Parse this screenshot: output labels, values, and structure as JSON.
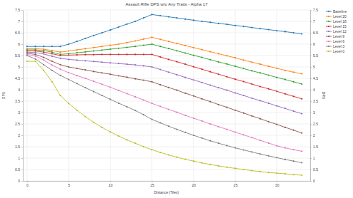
{
  "chart_data": {
    "type": "line",
    "title": "Assault Rifle DPS w/o Any Traits - Alpha 17",
    "x_label": "Distance (Tiles)",
    "y_label": "DPS",
    "y2_label": "DPS",
    "x": [
      0,
      1,
      2,
      3,
      4,
      5,
      6,
      7,
      8,
      9,
      10,
      11,
      12,
      13,
      14,
      15,
      16,
      17,
      18,
      19,
      20,
      21,
      22,
      23,
      24,
      25,
      26,
      27,
      28,
      29,
      30,
      31,
      32,
      33
    ],
    "xlim": [
      -0.5,
      34
    ],
    "xticks": [
      0,
      5,
      10,
      15,
      20,
      25,
      30
    ],
    "ylim": [
      0,
      7.5
    ],
    "yticks": [
      0,
      0.5,
      1,
      1.5,
      2,
      2.5,
      3,
      3.5,
      4,
      4.5,
      5,
      5.5,
      6,
      6.5,
      7,
      7.5
    ],
    "y2lim": [
      0,
      7.5
    ],
    "y2ticks": [
      0,
      0.5,
      1,
      1.5,
      2,
      2.5,
      3,
      3.5,
      4,
      4.5,
      5,
      5.5,
      6,
      6.5,
      7,
      7.5
    ],
    "grid": true,
    "legend": "top-right",
    "marker": "circle",
    "series": [
      {
        "name": "Baseline",
        "color": "#1f77b4",
        "values": [
          5.9,
          5.9,
          5.9,
          5.9,
          5.9,
          6.0,
          6.12,
          6.25,
          6.38,
          6.5,
          6.62,
          6.75,
          6.88,
          7.0,
          7.15,
          7.3,
          7.25,
          7.2,
          7.15,
          7.1,
          7.05,
          7.0,
          6.96,
          6.91,
          6.87,
          6.82,
          6.78,
          6.73,
          6.68,
          6.64,
          6.59,
          6.55,
          6.5,
          6.45
        ]
      },
      {
        "name": "Level 20",
        "color": "#ff7f0e",
        "values": [
          5.8,
          5.8,
          5.78,
          5.72,
          5.65,
          5.7,
          5.75,
          5.8,
          5.85,
          5.9,
          5.95,
          6.0,
          6.07,
          6.14,
          6.22,
          6.3,
          6.21,
          6.12,
          6.03,
          5.94,
          5.85,
          5.76,
          5.67,
          5.58,
          5.49,
          5.4,
          5.3,
          5.21,
          5.12,
          5.03,
          4.94,
          4.85,
          4.77,
          4.7
        ]
      },
      {
        "name": "Level 18",
        "color": "#2ca02c",
        "values": [
          5.75,
          5.75,
          5.72,
          5.65,
          5.55,
          5.58,
          5.62,
          5.66,
          5.7,
          5.74,
          5.78,
          5.82,
          5.86,
          5.9,
          5.95,
          6.0,
          5.9,
          5.81,
          5.71,
          5.61,
          5.51,
          5.42,
          5.32,
          5.22,
          5.13,
          5.03,
          4.93,
          4.83,
          4.74,
          4.64,
          4.54,
          4.45,
          4.35,
          4.25
        ]
      },
      {
        "name": "Level 15",
        "color": "#d62728",
        "values": [
          5.7,
          5.7,
          5.65,
          5.58,
          5.5,
          5.52,
          5.53,
          5.54,
          5.54,
          5.55,
          5.55,
          5.55,
          5.55,
          5.55,
          5.55,
          5.55,
          5.44,
          5.33,
          5.23,
          5.12,
          5.01,
          4.9,
          4.79,
          4.68,
          4.57,
          4.46,
          4.36,
          4.25,
          4.14,
          4.04,
          3.93,
          3.82,
          3.71,
          3.6
        ]
      },
      {
        "name": "Level 12",
        "color": "#9467bd",
        "values": [
          5.65,
          5.63,
          5.57,
          5.47,
          5.38,
          5.33,
          5.3,
          5.27,
          5.24,
          5.21,
          5.18,
          5.15,
          5.12,
          5.09,
          5.05,
          5.0,
          4.89,
          4.77,
          4.66,
          4.54,
          4.43,
          4.32,
          4.2,
          4.09,
          3.98,
          3.86,
          3.75,
          3.63,
          3.52,
          3.41,
          3.29,
          3.18,
          3.06,
          2.95
        ]
      },
      {
        "name": "Level 9",
        "color": "#8c564b",
        "values": [
          5.6,
          5.55,
          5.42,
          5.25,
          5.1,
          5.0,
          4.93,
          4.87,
          4.8,
          4.74,
          4.68,
          4.61,
          4.55,
          4.48,
          4.42,
          4.35,
          4.22,
          4.1,
          3.98,
          3.85,
          3.73,
          3.6,
          3.48,
          3.35,
          3.23,
          3.1,
          2.98,
          2.85,
          2.73,
          2.6,
          2.48,
          2.35,
          2.23,
          2.1
        ]
      },
      {
        "name": "Level 6",
        "color": "#e377c2",
        "values": [
          5.55,
          5.48,
          5.3,
          5.08,
          4.9,
          4.75,
          4.62,
          4.5,
          4.37,
          4.24,
          4.11,
          3.97,
          3.83,
          3.69,
          3.55,
          3.4,
          3.27,
          3.14,
          3.01,
          2.88,
          2.75,
          2.63,
          2.5,
          2.38,
          2.26,
          2.14,
          2.02,
          1.9,
          1.78,
          1.66,
          1.54,
          1.45,
          1.37,
          1.3
        ]
      },
      {
        "name": "Level 3",
        "color": "#7f7f7f",
        "values": [
          5.5,
          5.35,
          5.1,
          4.85,
          4.63,
          4.45,
          4.27,
          4.09,
          3.92,
          3.75,
          3.58,
          3.41,
          3.25,
          3.09,
          2.9,
          2.7,
          2.55,
          2.4,
          2.26,
          2.13,
          2.0,
          1.88,
          1.76,
          1.65,
          1.55,
          1.45,
          1.36,
          1.27,
          1.18,
          1.1,
          1.02,
          0.94,
          0.87,
          0.8
        ]
      },
      {
        "name": "Level 0",
        "color": "#bcbd22",
        "values": [
          5.25,
          5.25,
          4.85,
          4.35,
          3.75,
          3.4,
          3.1,
          2.82,
          2.57,
          2.35,
          2.15,
          1.97,
          1.8,
          1.65,
          1.5,
          1.37,
          1.25,
          1.14,
          1.04,
          0.95,
          0.87,
          0.79,
          0.72,
          0.66,
          0.6,
          0.55,
          0.5,
          0.45,
          0.41,
          0.37,
          0.34,
          0.31,
          0.28,
          0.25
        ]
      }
    ]
  }
}
